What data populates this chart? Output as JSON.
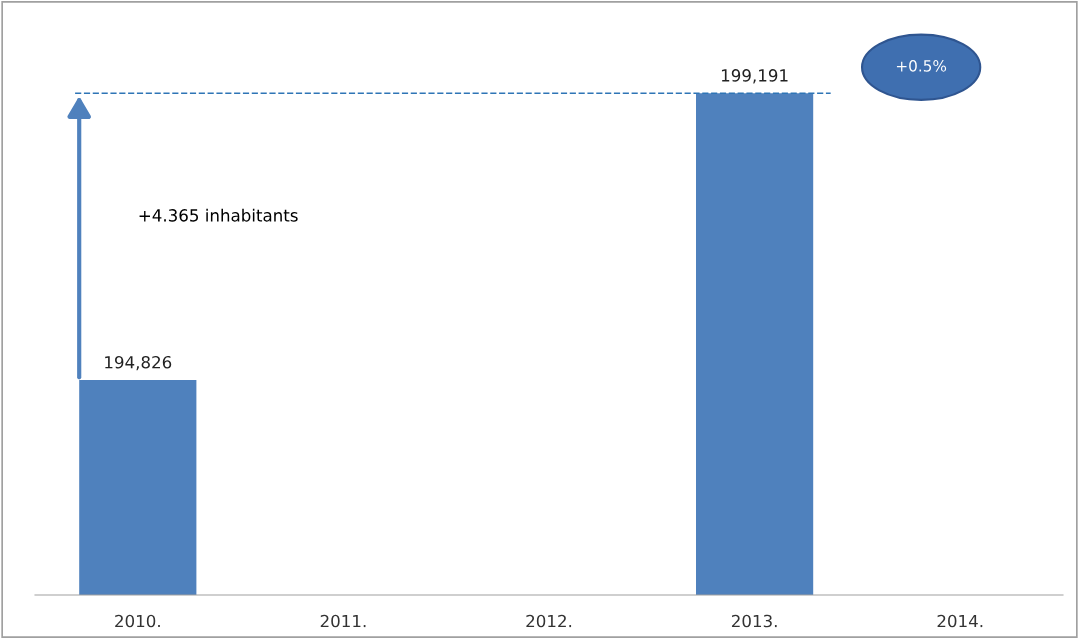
{
  "chart_data": {
    "type": "bar",
    "categories": [
      "2010.",
      "2011.",
      "2012.",
      "2013.",
      "2014."
    ],
    "values": [
      194826,
      null,
      null,
      199191,
      null
    ],
    "value_labels": [
      "194,826",
      null,
      null,
      "199,191",
      null
    ],
    "color": "#4f81bd",
    "ylim": [
      191556,
      200580
    ],
    "ref_lines": [
      {
        "axis": "y",
        "value": 199191,
        "color": "#2e75b6",
        "line_style": "dashed"
      }
    ],
    "annotations": [
      "+4.365 inhabitants",
      "+0.5%"
    ],
    "grid": false,
    "legend": false
  }
}
